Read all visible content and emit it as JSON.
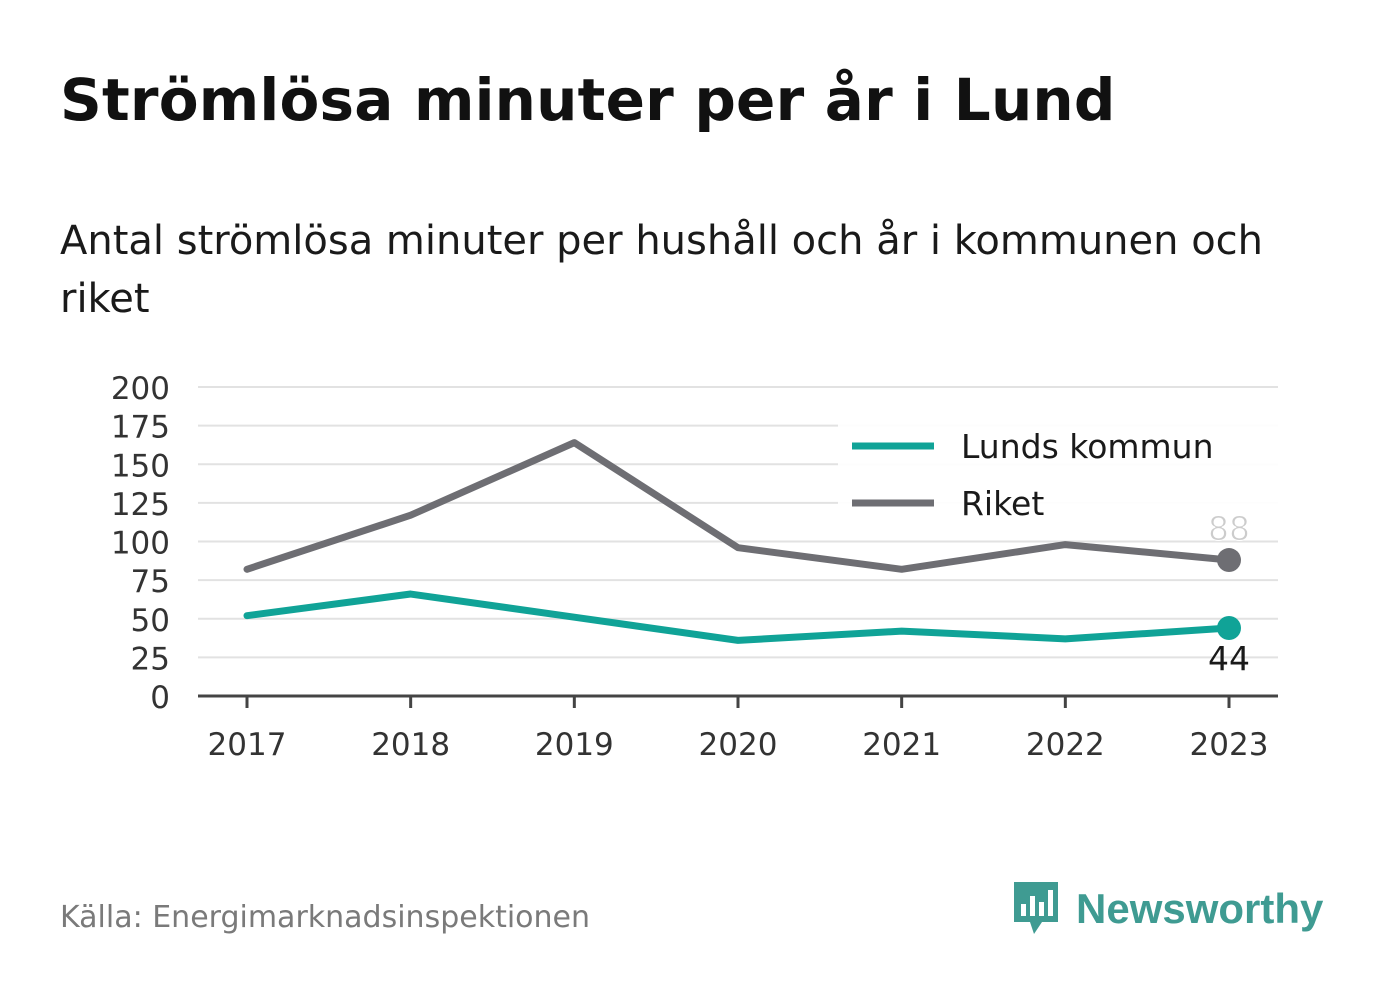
{
  "title": "Strömlösa minuter per år i Lund",
  "subtitle": "Antal strömlösa minuter per hushåll och år i kommunen och riket",
  "source": "Källa: Energimarknadsinspektionen",
  "brand": {
    "name": "Newsworthy",
    "icon": "newsworthy-logo-icon",
    "color": "#3f9b92"
  },
  "chart_data": {
    "type": "line",
    "x": [
      "2017",
      "2018",
      "2019",
      "2020",
      "2021",
      "2022",
      "2023"
    ],
    "ylim": [
      0,
      200
    ],
    "yticks": [
      0,
      25,
      50,
      75,
      100,
      125,
      150,
      175,
      200
    ],
    "grid": true,
    "legend_position": "top-right",
    "series": [
      {
        "name": "Lunds kommun",
        "color": "#10a397",
        "values": [
          52,
          66,
          51,
          36,
          42,
          37,
          44
        ],
        "end_label": "44"
      },
      {
        "name": "Riket",
        "color": "#6e6e73",
        "values": [
          82,
          117,
          164,
          96,
          82,
          98,
          88
        ],
        "end_label": "88"
      }
    ]
  }
}
